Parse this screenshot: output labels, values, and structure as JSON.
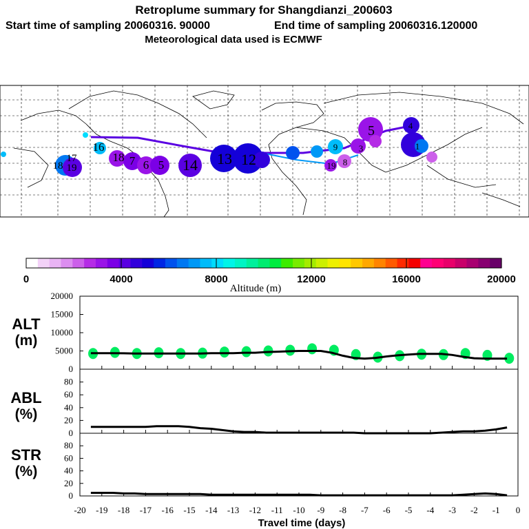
{
  "header": {
    "title": "Retroplume summary for Shangdianzi_200603",
    "line2_start": "Start time of sampling 20060316. 90000",
    "line2_end": "End time of sampling 20060316.120000",
    "line3": "Meteorological data used is ECMWF"
  },
  "colorbar": {
    "label": "Altitude (m)",
    "min": 0,
    "max": 20000,
    "tick_labels": [
      "0",
      "4000",
      "8000",
      "12000",
      "16000",
      "20000"
    ],
    "colors": [
      "#ffffff",
      "#f3d2f8",
      "#e9b4f4",
      "#dc8ef0",
      "#cc60ea",
      "#b52ce6",
      "#9a14e8",
      "#7b00e6",
      "#5a00e2",
      "#3200dc",
      "#1400d8",
      "#0026e4",
      "#0052ee",
      "#0078f2",
      "#0098f6",
      "#00bcfa",
      "#00dcfe",
      "#00f4e8",
      "#00f4c4",
      "#00f09c",
      "#00ec70",
      "#00ec40",
      "#3cec00",
      "#78ec00",
      "#a4ec00",
      "#ccf000",
      "#eef000",
      "#ffe400",
      "#ffc800",
      "#ffa800",
      "#ff8400",
      "#ff5a00",
      "#ff2a00",
      "#f40000",
      "#ff0090",
      "#ff0074",
      "#e8006a",
      "#c8006a",
      "#a80070",
      "#880070",
      "#680068"
    ]
  },
  "map_labels": {
    "left_labels": [
      "18",
      "19",
      "17",
      "16",
      "18",
      "7",
      "6",
      "5",
      "14",
      "13",
      "12"
    ],
    "right_labels": [
      "5",
      "4",
      "9",
      "8",
      "3",
      "1",
      "19"
    ]
  },
  "panels": {
    "alt": {
      "label_top": "ALT",
      "label_bottom": "(m)",
      "ticks": [
        "20000",
        "15000",
        "10000",
        "5000",
        "0"
      ]
    },
    "abl": {
      "label_top": "ABL",
      "label_bottom": "(%)",
      "ticks": [
        "80",
        "60",
        "40",
        "20",
        "0"
      ]
    },
    "str": {
      "label_top": "STR",
      "label_bottom": "(%)",
      "ticks": [
        "80",
        "60",
        "40",
        "20",
        "0"
      ]
    }
  },
  "xaxis": {
    "title": "Travel time (days)",
    "ticks": [
      "-20",
      "-19",
      "-18",
      "-17",
      "-16",
      "-15",
      "-14",
      "-13",
      "-12",
      "-11",
      "-10",
      "-9",
      "-8",
      "-7",
      "-6",
      "-5",
      "-4",
      "-3",
      "-2",
      "-1",
      "0"
    ]
  },
  "chart_data": {
    "type": "line",
    "x": [
      -19.5,
      -19,
      -18.5,
      -18,
      -17.5,
      -17,
      -16.5,
      -16,
      -15.5,
      -15,
      -14.5,
      -14,
      -13.5,
      -13,
      -12.5,
      -12,
      -11.5,
      -11,
      -10.5,
      -10,
      -9.5,
      -9,
      -8.5,
      -8,
      -7.5,
      -7,
      -6.5,
      -6,
      -5.5,
      -5,
      -4.5,
      -4,
      -3.5,
      -3,
      -2.5,
      -2,
      -1.5,
      -1,
      -0.5
    ],
    "series": [
      {
        "name": "ALT (m)",
        "xlim": [
          -20,
          0
        ],
        "ylim": [
          0,
          20000
        ],
        "values": [
          4400,
          4400,
          4400,
          4350,
          4300,
          4300,
          4300,
          4300,
          4300,
          4300,
          4300,
          4400,
          4400,
          4400,
          4500,
          4500,
          4700,
          4800,
          4900,
          5000,
          5000,
          5000,
          4500,
          3700,
          3100,
          2900,
          3100,
          3500,
          3800,
          4000,
          4200,
          4200,
          4200,
          3900,
          3400,
          3000,
          2900,
          2900,
          2900
        ]
      },
      {
        "name": "ABL (%)",
        "xlim": [
          -20,
          0
        ],
        "ylim": [
          0,
          100
        ],
        "values": [
          10,
          10,
          10,
          10,
          10,
          10,
          11,
          11,
          11,
          10,
          8,
          7,
          5,
          3,
          2,
          2,
          1,
          1,
          1,
          1,
          1,
          1,
          1,
          1,
          1,
          0,
          0,
          0,
          0,
          0,
          0,
          0,
          1,
          2,
          3,
          3,
          4,
          6,
          9
        ]
      },
      {
        "name": "STR (%)",
        "xlim": [
          -20,
          0
        ],
        "ylim": [
          0,
          100
        ],
        "values": [
          5,
          5,
          5,
          4,
          4,
          3,
          3,
          3,
          3,
          3,
          3,
          2,
          2,
          2,
          2,
          2,
          2,
          2,
          2,
          2,
          2,
          1,
          1,
          1,
          1,
          1,
          1,
          1,
          1,
          1,
          1,
          1,
          1,
          1,
          2,
          3,
          4,
          3,
          1
        ]
      }
    ],
    "alt_particle_clusters": {
      "x": [
        -19.4,
        -18.4,
        -17.4,
        -16.4,
        -15.4,
        -14.4,
        -13.4,
        -12.4,
        -11.4,
        -10.4,
        -9.4,
        -8.4,
        -7.4,
        -6.4,
        -5.4,
        -4.4,
        -3.4,
        -2.4,
        -1.4,
        -0.4
      ],
      "y": [
        4300,
        4600,
        4300,
        4500,
        4300,
        4400,
        4700,
        4800,
        5000,
        5200,
        5600,
        5200,
        4000,
        3300,
        3700,
        4100,
        4000,
        4300,
        3800,
        3000
      ]
    },
    "xlabel": "Travel time (days)",
    "colorbar_label": "Altitude (m)"
  }
}
